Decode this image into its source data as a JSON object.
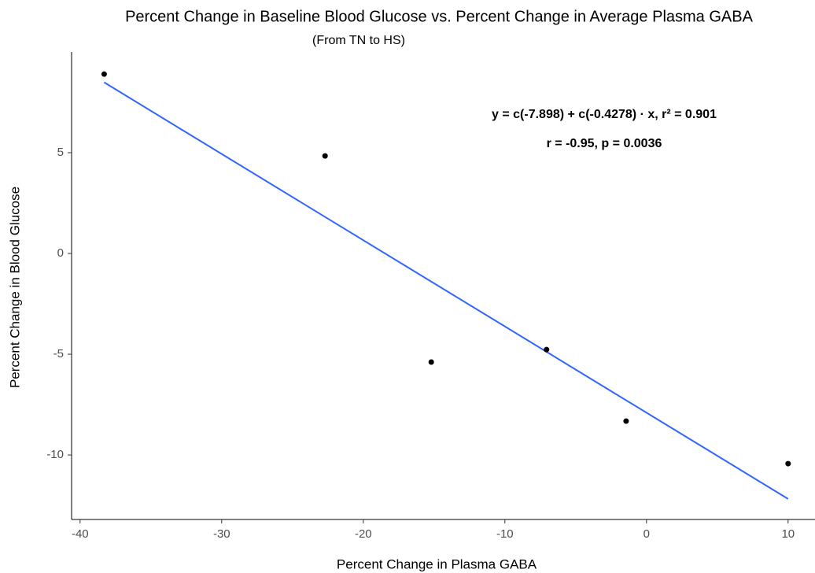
{
  "chart_data": {
    "type": "scatter",
    "title": "Percent Change in Baseline Blood Glucose vs. Percent Change in Average Plasma GABA",
    "subtitle": "(From TN to HS)",
    "x_label": "Percent Change in Plasma GABA",
    "y_label": "Percent Change in Blood Glucose",
    "annotations": [
      "y = c(-7.898) + c(-0.4278) · x,  r² = 0.901",
      "r = -0.95,  p = 0.0036"
    ],
    "x": [
      -38.3,
      -22.7,
      -15.2,
      -7.06,
      -1.44,
      10.0
    ],
    "values": [
      8.9,
      4.84,
      -5.39,
      -4.77,
      -8.32,
      -10.43
    ],
    "color": "#000000",
    "fit": {
      "x": [
        -38.3,
        10.0
      ],
      "values": [
        8.49,
        -12.18
      ],
      "color": "#3366ff"
    },
    "xlim": [
      -40.6,
      11.9
    ],
    "ylim": [
      -13.2,
      10.0
    ],
    "xticks": [
      -40,
      -30,
      -20,
      -10,
      0,
      10
    ],
    "yticks": [
      -10,
      -5,
      0,
      5
    ],
    "grid": false
  }
}
